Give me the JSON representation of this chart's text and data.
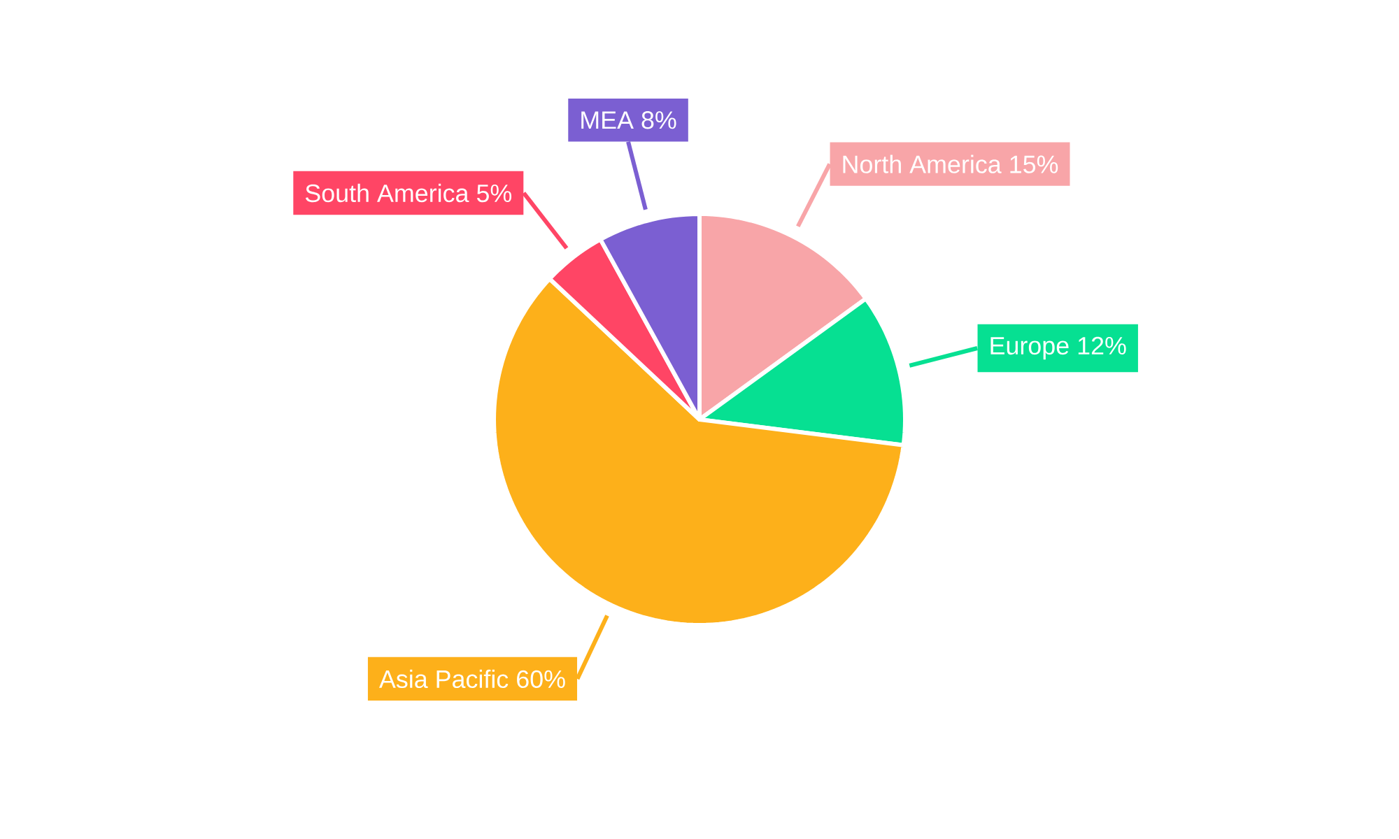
{
  "chart_data": {
    "type": "pie",
    "categories": [
      "North America",
      "Europe",
      "Asia Pacific",
      "South America",
      "MEA"
    ],
    "values": [
      15,
      12,
      60,
      5,
      8
    ],
    "value_labels": [
      "15%",
      "12%",
      "60%",
      "5%",
      "8%"
    ],
    "colors": [
      "#f8a5a8",
      "#06e092",
      "#fdb01a",
      "#ff4565",
      "#7b5fd2"
    ]
  }
}
